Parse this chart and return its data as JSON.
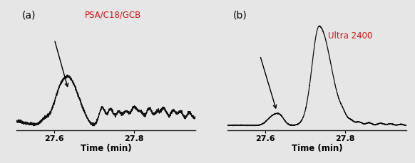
{
  "background_color": "#e6e6e6",
  "label_a": "(a)",
  "label_b": "(b)",
  "text_a": "PSA/C18/GCB",
  "text_b": "Ultra 2400",
  "text_color": "#cc1111",
  "xlabel": "Time (min)",
  "xticks": [
    27.6,
    27.8
  ],
  "xmin": 27.505,
  "xmax": 27.955,
  "line_color": "#111111",
  "line_width": 0.9
}
